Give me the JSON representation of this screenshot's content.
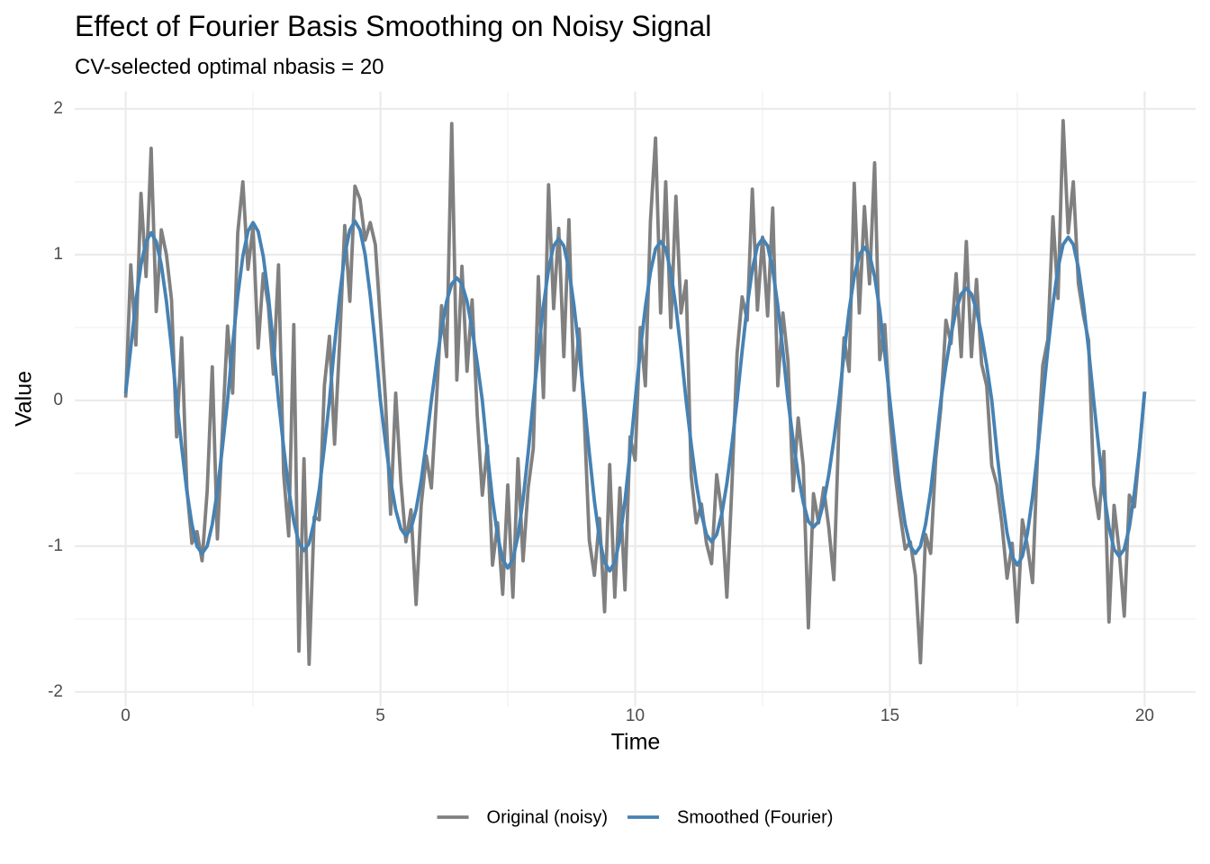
{
  "chart_data": {
    "type": "line",
    "title": "Effect of Fourier Basis Smoothing on Noisy Signal",
    "subtitle": "CV-selected optimal nbasis = 20",
    "x_label": "Time",
    "y_label": "Value",
    "xlim": [
      -1,
      21
    ],
    "ylim": [
      -2.1,
      2.12
    ],
    "xticks": [
      0,
      5,
      10,
      15,
      20
    ],
    "yticks": [
      -2,
      -1,
      0,
      1,
      2
    ],
    "xminorticks": [
      2.5,
      7.5,
      12.5,
      17.5
    ],
    "yminorticks": [
      -1.5,
      -0.5,
      0.5,
      1.5
    ],
    "grid": true,
    "legend_position": "bottom",
    "x": [
      0,
      0.1,
      0.2,
      0.3,
      0.4,
      0.5,
      0.6,
      0.7,
      0.8,
      0.9,
      1,
      1.1,
      1.2,
      1.3,
      1.4,
      1.5,
      1.6,
      1.7,
      1.8,
      1.9,
      2,
      2.1,
      2.2,
      2.3,
      2.4,
      2.5,
      2.6,
      2.7,
      2.8,
      2.9,
      3,
      3.1,
      3.2,
      3.3,
      3.4,
      3.5,
      3.6,
      3.7,
      3.8,
      3.9,
      4,
      4.1,
      4.2,
      4.3,
      4.4,
      4.5,
      4.6,
      4.7,
      4.8,
      4.9,
      5,
      5.1,
      5.2,
      5.3,
      5.4,
      5.5,
      5.6,
      5.7,
      5.8,
      5.9,
      6,
      6.1,
      6.2,
      6.3,
      6.4,
      6.5,
      6.6,
      6.7,
      6.8,
      6.9,
      7,
      7.1,
      7.2,
      7.3,
      7.4,
      7.5,
      7.6,
      7.7,
      7.8,
      7.9,
      8,
      8.1,
      8.2,
      8.3,
      8.4,
      8.5,
      8.6,
      8.7,
      8.8,
      8.9,
      9,
      9.1,
      9.2,
      9.3,
      9.4,
      9.5,
      9.6,
      9.7,
      9.8,
      9.9,
      10,
      10.1,
      10.2,
      10.3,
      10.4,
      10.5,
      10.6,
      10.7,
      10.8,
      10.9,
      11,
      11.1,
      11.2,
      11.3,
      11.4,
      11.5,
      11.6,
      11.7,
      11.8,
      11.9,
      12,
      12.1,
      12.2,
      12.3,
      12.4,
      12.5,
      12.6,
      12.7,
      12.8,
      12.9,
      13,
      13.1,
      13.2,
      13.3,
      13.4,
      13.5,
      13.6,
      13.7,
      13.8,
      13.9,
      14,
      14.1,
      14.2,
      14.3,
      14.4,
      14.5,
      14.6,
      14.7,
      14.8,
      14.9,
      15,
      15.1,
      15.2,
      15.3,
      15.4,
      15.5,
      15.6,
      15.7,
      15.8,
      15.9,
      16,
      16.1,
      16.2,
      16.3,
      16.4,
      16.5,
      16.6,
      16.7,
      16.8,
      16.9,
      17,
      17.1,
      17.2,
      17.3,
      17.4,
      17.5,
      17.6,
      17.7,
      17.8,
      17.9,
      18,
      18.1,
      18.2,
      18.3,
      18.4,
      18.5,
      18.6,
      18.7,
      18.8,
      18.9,
      19,
      19.1,
      19.2,
      19.3,
      19.4,
      19.5,
      19.6,
      19.7,
      19.8,
      19.9,
      20
    ],
    "series": [
      {
        "name": "Original (noisy)",
        "color": "#808080",
        "values": [
          0.02,
          0.93,
          0.38,
          1.42,
          0.85,
          1.73,
          0.61,
          1.17,
          1.0,
          0.69,
          -0.25,
          0.43,
          -0.6,
          -0.98,
          -0.9,
          -1.1,
          -0.62,
          0.23,
          -0.95,
          -0.2,
          0.51,
          0.05,
          1.15,
          1.5,
          0.9,
          1.19,
          0.36,
          0.87,
          0.65,
          0.18,
          0.93,
          -0.5,
          -0.93,
          0.52,
          -1.72,
          -0.4,
          -1.81,
          -0.8,
          -0.82,
          0.1,
          0.44,
          -0.3,
          0.4,
          1.2,
          0.68,
          1.47,
          1.38,
          1.1,
          1.22,
          1.07,
          0.55,
          0.0,
          -0.78,
          0.05,
          -0.55,
          -0.97,
          -0.75,
          -1.4,
          -0.72,
          -0.38,
          -0.6,
          0.0,
          0.65,
          0.3,
          1.9,
          0.14,
          0.92,
          0.2,
          0.69,
          -0.1,
          -0.65,
          -0.31,
          -1.13,
          -0.84,
          -1.33,
          -0.58,
          -1.35,
          -0.4,
          -1.1,
          -0.6,
          -0.33,
          0.85,
          0.02,
          1.48,
          0.63,
          1.18,
          0.3,
          1.24,
          0.07,
          0.49,
          -0.11,
          -0.96,
          -1.2,
          -0.81,
          -1.45,
          -0.44,
          -1.35,
          -0.6,
          -1.3,
          -0.25,
          -0.41,
          0.5,
          0.1,
          1.23,
          1.8,
          0.6,
          1.5,
          0.5,
          1.4,
          0.6,
          0.82,
          -0.52,
          -0.84,
          -0.71,
          -0.98,
          -1.12,
          -0.51,
          -0.77,
          -1.35,
          -0.58,
          0.32,
          0.71,
          0.55,
          1.45,
          0.62,
          1.12,
          0.58,
          1.32,
          0.1,
          0.6,
          0.27,
          -0.62,
          -0.12,
          -0.45,
          -1.56,
          -0.64,
          -0.84,
          -0.6,
          -0.87,
          -1.23,
          -0.17,
          0.43,
          0.2,
          1.49,
          0.6,
          1.33,
          0.8,
          1.63,
          0.28,
          0.52,
          -0.1,
          -0.5,
          -0.78,
          -1.02,
          -0.97,
          -1.2,
          -1.8,
          -0.92,
          -1.05,
          -0.4,
          -0.05,
          0.55,
          0.39,
          0.87,
          0.3,
          1.09,
          0.3,
          0.83,
          0.25,
          0.1,
          -0.45,
          -0.58,
          -0.85,
          -1.22,
          -0.98,
          -1.52,
          -0.82,
          -1.0,
          -1.25,
          -0.35,
          0.24,
          0.42,
          1.26,
          0.7,
          1.92,
          1.15,
          1.5,
          0.8,
          0.58,
          0.41,
          -0.58,
          -0.81,
          -0.35,
          -1.52,
          -0.72,
          -1.03,
          -1.48,
          -0.65,
          -0.73,
          -0.33,
          0.06
        ]
      },
      {
        "name": "Smoothed (Fourier)",
        "color": "#4682b4",
        "values": [
          0.05,
          0.36,
          0.68,
          0.93,
          1.09,
          1.15,
          1.09,
          0.93,
          0.68,
          0.36,
          0,
          -0.32,
          -0.62,
          -0.85,
          -1.0,
          -1.05,
          -1.0,
          -0.85,
          -0.62,
          -0.32,
          0,
          0.38,
          0.72,
          0.99,
          1.16,
          1.22,
          1.16,
          0.99,
          0.72,
          0.38,
          0,
          -0.32,
          -0.61,
          -0.83,
          -0.98,
          -1.03,
          -0.98,
          -0.83,
          -0.61,
          -0.32,
          0,
          0.38,
          0.72,
          1.0,
          1.17,
          1.23,
          1.17,
          1.0,
          0.72,
          0.38,
          0,
          -0.29,
          -0.55,
          -0.75,
          -0.88,
          -0.93,
          -0.88,
          -0.75,
          -0.55,
          -0.29,
          0,
          0.26,
          0.49,
          0.68,
          0.8,
          0.84,
          0.8,
          0.68,
          0.49,
          0.26,
          0,
          -0.36,
          -0.68,
          -0.93,
          -1.09,
          -1.15,
          -1.09,
          -0.93,
          -0.68,
          -0.36,
          0,
          0.34,
          0.65,
          0.9,
          1.06,
          1.11,
          1.06,
          0.9,
          0.65,
          0.34,
          0,
          -0.36,
          -0.69,
          -0.95,
          -1.11,
          -1.17,
          -1.11,
          -0.95,
          -0.69,
          -0.36,
          0,
          0.34,
          0.64,
          0.88,
          1.04,
          1.09,
          1.04,
          0.88,
          0.64,
          0.34,
          0,
          -0.3,
          -0.57,
          -0.78,
          -0.92,
          -0.97,
          -0.92,
          -0.78,
          -0.57,
          -0.3,
          0,
          0.34,
          0.65,
          0.9,
          1.06,
          1.11,
          1.06,
          0.9,
          0.65,
          0.34,
          0,
          -0.27,
          -0.51,
          -0.7,
          -0.83,
          -0.87,
          -0.83,
          -0.7,
          -0.51,
          -0.27,
          0,
          0.32,
          0.62,
          0.85,
          1.0,
          1.05,
          1.0,
          0.85,
          0.62,
          0.32,
          0,
          -0.32,
          -0.62,
          -0.85,
          -1.0,
          -1.05,
          -1.0,
          -0.85,
          -0.62,
          -0.32,
          0,
          0.24,
          0.45,
          0.62,
          0.73,
          0.77,
          0.73,
          0.62,
          0.45,
          0.24,
          0,
          -0.35,
          -0.66,
          -0.91,
          -1.07,
          -1.13,
          -1.07,
          -0.91,
          -0.66,
          -0.35,
          0,
          0.35,
          0.66,
          0.91,
          1.07,
          1.12,
          1.07,
          0.91,
          0.66,
          0.35,
          0,
          -0.33,
          -0.63,
          -0.87,
          -1.02,
          -1.07,
          -1.02,
          -0.87,
          -0.63,
          -0.33,
          0.06
        ]
      }
    ]
  }
}
